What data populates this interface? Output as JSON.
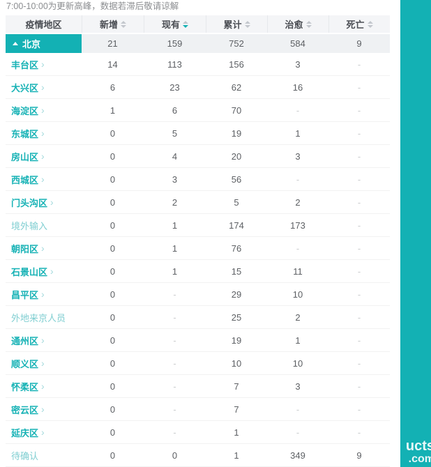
{
  "notice": "7:00-10:00为更新高峰，数据若滞后敬请谅解",
  "colors": {
    "accent_teal": "#13b1b4",
    "region_link": "#16b2b5",
    "region_muted": "#7fced1",
    "header_bg": "#f4f5f7",
    "selected_row_bg": "#eff1f3",
    "header_text": "#4b4e54",
    "value_text": "#5c5f63",
    "dash_text": "#c9cbcd",
    "caret_inactive": "#c3c7cd"
  },
  "table": {
    "columns": [
      {
        "label": "疫情地区",
        "sortable": false,
        "sort": "none"
      },
      {
        "label": "新增",
        "sortable": true,
        "sort": "none"
      },
      {
        "label": "现有",
        "sortable": true,
        "sort": "desc"
      },
      {
        "label": "累计",
        "sortable": true,
        "sort": "none"
      },
      {
        "label": "治愈",
        "sortable": true,
        "sort": "none"
      },
      {
        "label": "死亡",
        "sortable": true,
        "sort": "none"
      }
    ],
    "summary_row": {
      "region": "北京",
      "expanded": true,
      "values": [
        "21",
        "159",
        "752",
        "584",
        "9"
      ]
    },
    "rows": [
      {
        "region": "丰台区",
        "link": true,
        "values": [
          "14",
          "113",
          "156",
          "3",
          "-"
        ]
      },
      {
        "region": "大兴区",
        "link": true,
        "values": [
          "6",
          "23",
          "62",
          "16",
          "-"
        ]
      },
      {
        "region": "海淀区",
        "link": true,
        "values": [
          "1",
          "6",
          "70",
          "-",
          "-"
        ]
      },
      {
        "region": "东城区",
        "link": true,
        "values": [
          "0",
          "5",
          "19",
          "1",
          "-"
        ]
      },
      {
        "region": "房山区",
        "link": true,
        "values": [
          "0",
          "4",
          "20",
          "3",
          "-"
        ]
      },
      {
        "region": "西城区",
        "link": true,
        "values": [
          "0",
          "3",
          "56",
          "-",
          "-"
        ]
      },
      {
        "region": "门头沟区",
        "link": true,
        "values": [
          "0",
          "2",
          "5",
          "2",
          "-"
        ]
      },
      {
        "region": "境外输入",
        "link": false,
        "values": [
          "0",
          "1",
          "174",
          "173",
          "-"
        ]
      },
      {
        "region": "朝阳区",
        "link": true,
        "values": [
          "0",
          "1",
          "76",
          "-",
          "-"
        ]
      },
      {
        "region": "石景山区",
        "link": true,
        "values": [
          "0",
          "1",
          "15",
          "11",
          "-"
        ]
      },
      {
        "region": "昌平区",
        "link": true,
        "values": [
          "0",
          "-",
          "29",
          "10",
          "-"
        ]
      },
      {
        "region": "外地来京人员",
        "link": false,
        "values": [
          "0",
          "-",
          "25",
          "2",
          "-"
        ]
      },
      {
        "region": "通州区",
        "link": true,
        "values": [
          "0",
          "-",
          "19",
          "1",
          "-"
        ]
      },
      {
        "region": "顺义区",
        "link": true,
        "values": [
          "0",
          "-",
          "10",
          "10",
          "-"
        ]
      },
      {
        "region": "怀柔区",
        "link": true,
        "values": [
          "0",
          "-",
          "7",
          "3",
          "-"
        ]
      },
      {
        "region": "密云区",
        "link": true,
        "values": [
          "0",
          "-",
          "7",
          "-",
          "-"
        ]
      },
      {
        "region": "延庆区",
        "link": true,
        "values": [
          "0",
          "-",
          "1",
          "-",
          "-"
        ]
      },
      {
        "region": "待确认",
        "link": false,
        "values": [
          "0",
          "0",
          "1",
          "349",
          "9"
        ]
      }
    ]
  },
  "watermark": {
    "line1": "ucts",
    "line2": ".com"
  }
}
